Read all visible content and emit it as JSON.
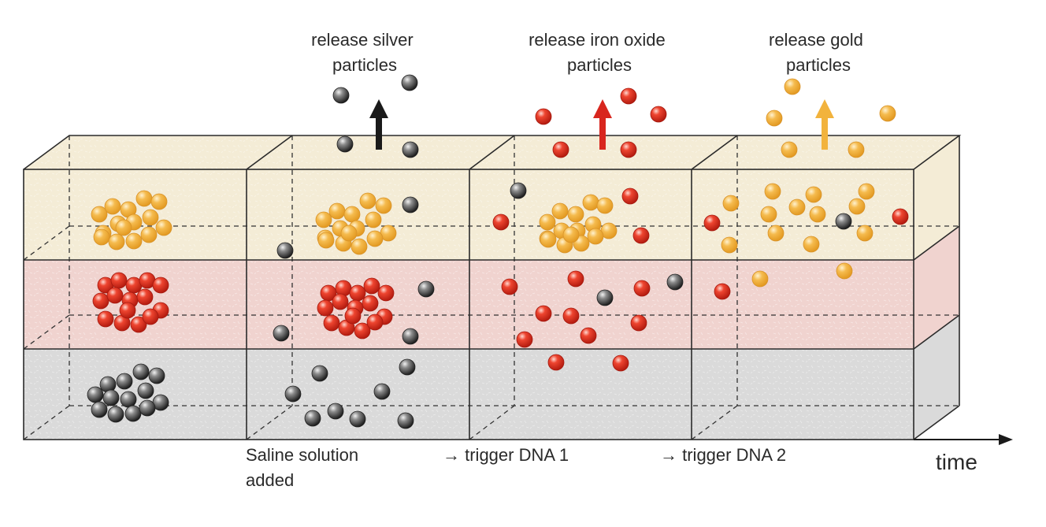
{
  "release_labels": [
    {
      "lines": [
        "release silver",
        "particles"
      ]
    },
    {
      "lines": [
        "release iron oxide",
        "particles"
      ]
    },
    {
      "lines": [
        "release gold",
        "particles"
      ]
    }
  ],
  "step_labels": [
    {
      "lines": [
        "Saline solution",
        "added"
      ]
    },
    {
      "lines": [
        "→ trigger DNA 1"
      ]
    },
    {
      "lines": [
        "→ trigger DNA 2"
      ]
    }
  ],
  "axis_label": "time",
  "particle_types": [
    {
      "name": "silver",
      "color": "#3c3c3c"
    },
    {
      "name": "iron-oxide",
      "color": "#e0301e"
    },
    {
      "name": "gold",
      "color": "#f2b33d"
    }
  ],
  "colors": {
    "gold_layer": "#f4ecd6",
    "iron_layer": "#f0d3cf",
    "silver_layer": "#dadada",
    "silver_arrow": "#1a1a1a",
    "iron_arrow": "#d8261e",
    "gold_arrow": "#f2b33d"
  },
  "icons": [
    "arrow-up-icon",
    "time-arrow-icon",
    "particle-sphere-icon"
  ]
}
